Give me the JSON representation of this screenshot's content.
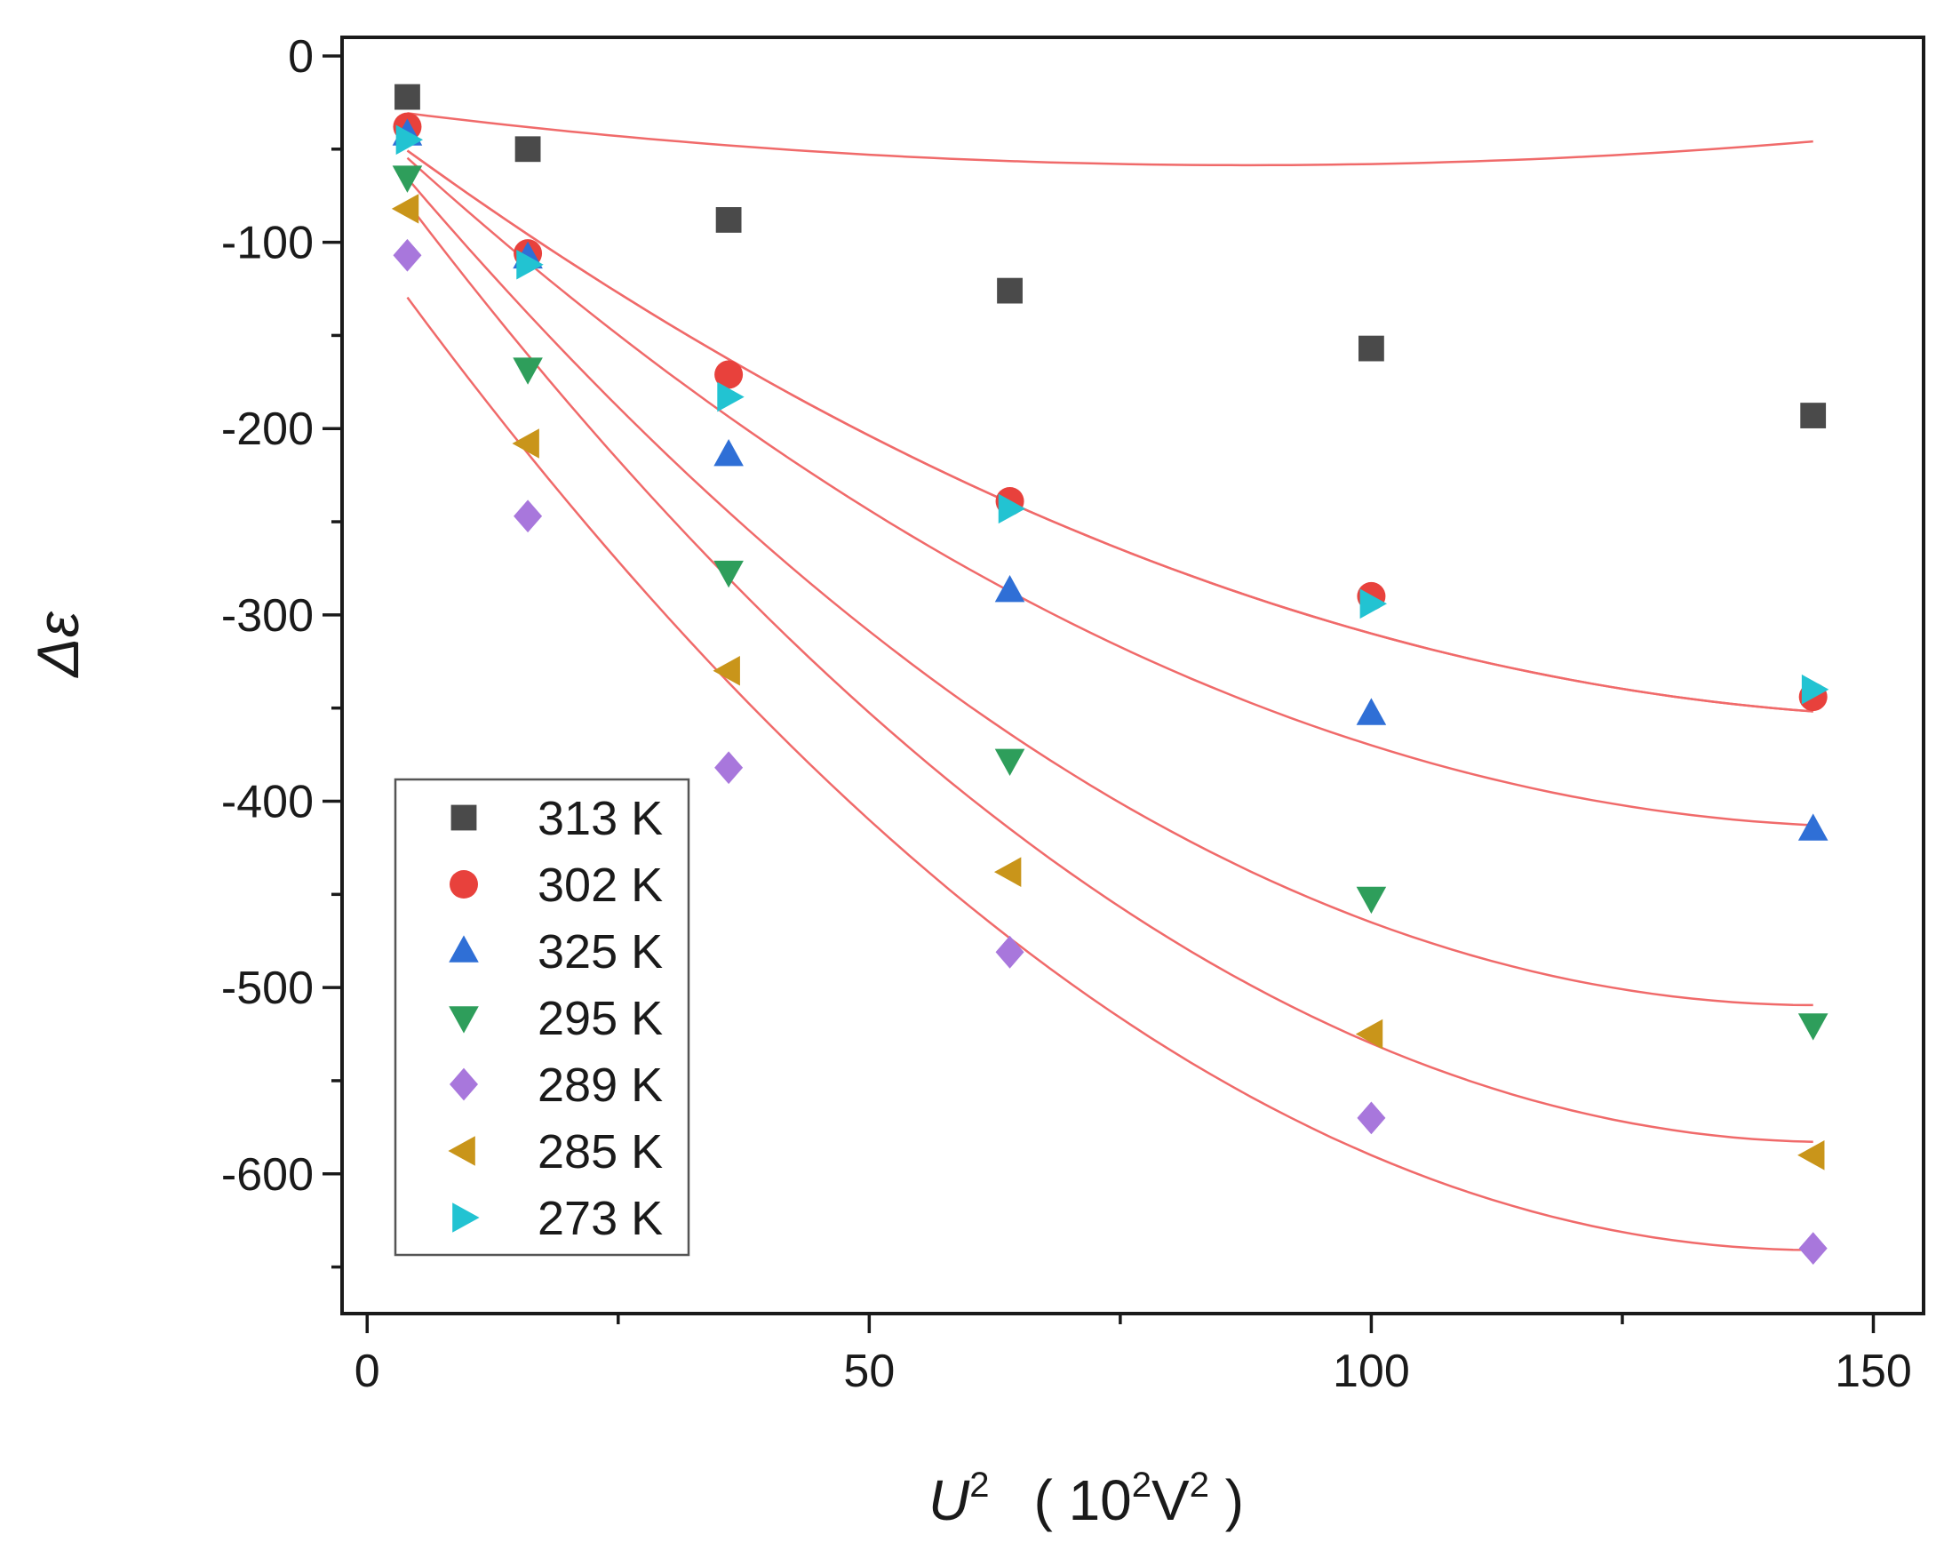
{
  "chart_data": {
    "type": "scatter",
    "title": "",
    "xlabel": {
      "symbol": "U",
      "superscript": "2",
      "units_open": "( 10",
      "units_sup1": "2",
      "units_mid": "V",
      "units_sup2": "2",
      "units_close": " )"
    },
    "ylabel": "Δε",
    "xlim": [
      -2.5,
      155
    ],
    "ylim": [
      -675,
      10
    ],
    "xticks": [
      0,
      50,
      100,
      150
    ],
    "xtick_labels": [
      "0",
      "50",
      "100",
      "150"
    ],
    "yticks": [
      0,
      -100,
      -200,
      -300,
      -400,
      -500,
      -600
    ],
    "ytick_labels": [
      "0",
      "-100",
      "-200",
      "-300",
      "-400",
      "-500",
      "-600"
    ],
    "legend_position": "bottom-left",
    "fit_line_color": "#f06a6a",
    "x": [
      4,
      16,
      36,
      64,
      100,
      144
    ],
    "series": [
      {
        "name": "313 K",
        "marker": "square",
        "color": "#4a4a4a",
        "values": [
          -22,
          -50,
          -88,
          -126,
          -157,
          -193
        ],
        "fit": [
          -28,
          -0.7,
          0.004
        ]
      },
      {
        "name": "302 K",
        "marker": "circle",
        "color": "#e8413c",
        "values": [
          -38,
          -106,
          -171,
          -239,
          -290,
          -344
        ],
        "fit": [
          -35,
          -4.0,
          0.0125
        ]
      },
      {
        "name": "325 K",
        "marker": "triangle-up",
        "color": "#2f6fd6",
        "values": [
          -42,
          -108,
          -214,
          -287,
          -353,
          -415
        ],
        "fit": [
          -35,
          -5.0,
          0.0165
        ]
      },
      {
        "name": "295 K",
        "marker": "triangle-down",
        "color": "#2e9e5b",
        "values": [
          -65,
          -168,
          -277,
          -378,
          -452,
          -520
        ],
        "fit": [
          -40,
          -6.5,
          0.0225
        ]
      },
      {
        "name": "289 K",
        "marker": "diamond",
        "color": "#a877dc",
        "values": [
          -107,
          -247,
          -382,
          -481,
          -570,
          -640
        ],
        "fit": [
          -100,
          -7.5,
          0.026
        ]
      },
      {
        "name": "285 K",
        "marker": "triangle-left",
        "color": "#c9951a",
        "values": [
          -82,
          -208,
          -330,
          -438,
          -525,
          -590
        ],
        "fit": [
          -50,
          -7.3,
          0.025
        ]
      },
      {
        "name": "273 K",
        "marker": "triangle-right",
        "color": "#22c3d2",
        "values": [
          -45,
          -112,
          -183,
          -243,
          -294,
          -340
        ],
        "fit": [
          -35,
          -4.0,
          0.0125
        ]
      }
    ]
  }
}
